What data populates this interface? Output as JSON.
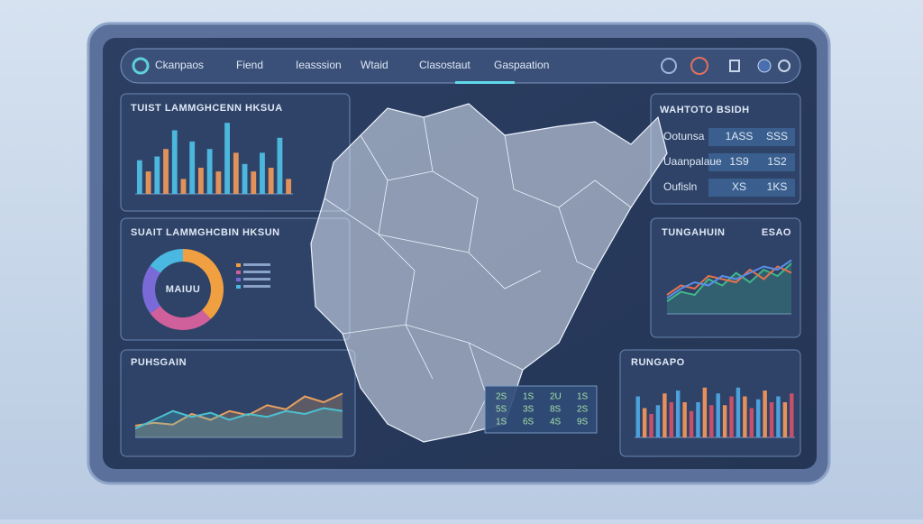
{
  "nav": {
    "brand": "Ckanpaos",
    "items": [
      "Fiend",
      "Ieasssion",
      "Wtaid",
      "Clasostaut",
      "Gaspaation"
    ]
  },
  "bar_panel": {
    "type": "bar",
    "title": "TUIST LAMMGHCENN HKSUA",
    "ylim": [
      0,
      100
    ],
    "series": [
      {
        "color": "#4cb6dc",
        "values": [
          45,
          50,
          85,
          70,
          60,
          95,
          40,
          55,
          75
        ]
      },
      {
        "color": "#e0925a",
        "values": [
          30,
          60,
          20,
          35,
          30,
          55,
          30,
          35,
          20
        ]
      }
    ]
  },
  "donut_panel": {
    "type": "pie",
    "title": "SUAIT LAMMGHCBIN HKSUN",
    "center_label": "MAIUU",
    "values": [
      38,
      27,
      20,
      15
    ],
    "colors": [
      "#f0a040",
      "#d0609c",
      "#7a6ad8",
      "#4ab8e0"
    ]
  },
  "area_panel": {
    "type": "area",
    "title": "PUHSGAIN",
    "ylim": [
      0,
      100
    ],
    "series": [
      {
        "color": "#e8a060",
        "values": [
          20,
          25,
          22,
          40,
          30,
          45,
          38,
          55,
          48,
          70,
          60,
          75
        ]
      },
      {
        "color": "#4cc0d0",
        "values": [
          15,
          30,
          45,
          35,
          42,
          30,
          40,
          35,
          45,
          40,
          50,
          45
        ]
      }
    ]
  },
  "stats_panel": {
    "title": "WAHTOTO BSIDH",
    "rows": [
      [
        "Ootunsa",
        "1ASS",
        "SSS"
      ],
      [
        "Uaanpalaue",
        "1S9",
        "1S2"
      ],
      [
        "Oufisln",
        "XS",
        "1KS"
      ]
    ]
  },
  "line_panel": {
    "type": "line",
    "title": "TUNGAHUIN",
    "badge": "ESAO",
    "ylim": [
      0,
      100
    ],
    "series": [
      {
        "color": "#3fb88a",
        "values": [
          20,
          35,
          30,
          55,
          45,
          65,
          50,
          70,
          60,
          80
        ]
      },
      {
        "color": "#e8704a",
        "values": [
          30,
          45,
          40,
          60,
          55,
          50,
          70,
          55,
          75,
          65
        ]
      },
      {
        "color": "#5a8ee8",
        "values": [
          25,
          40,
          50,
          45,
          60,
          55,
          65,
          75,
          70,
          85
        ]
      }
    ]
  },
  "bars_panel": {
    "type": "bar",
    "title": "RUNGAPO",
    "ylim": [
      0,
      100
    ],
    "series": [
      {
        "color": "#4ca0dc",
        "values": [
          70,
          55,
          80,
          60,
          75,
          85,
          65,
          70
        ]
      },
      {
        "color": "#e8905a",
        "values": [
          50,
          75,
          60,
          85,
          55,
          70,
          80,
          60
        ]
      },
      {
        "color": "#c8506a",
        "values": [
          40,
          60,
          45,
          55,
          70,
          50,
          60,
          75
        ]
      }
    ]
  },
  "map_table": {
    "rows": [
      [
        "2S",
        "1S",
        "2U",
        "1S"
      ],
      [
        "5S",
        "3S",
        "8S",
        "2S"
      ],
      [
        "1S",
        "6S",
        "4S",
        "9S"
      ]
    ]
  }
}
